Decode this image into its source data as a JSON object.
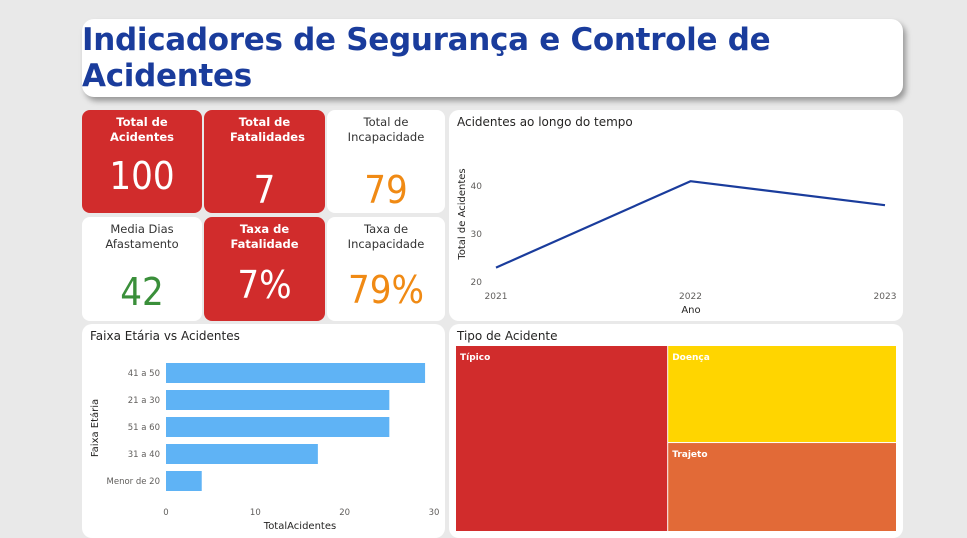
{
  "header": {
    "title": "Indicadores de Segurança e Controle de Acidentes"
  },
  "kpis": {
    "total_acidentes": {
      "label": "Total de Acidentes",
      "value": "100"
    },
    "total_fatalidades": {
      "label": "Total de Fatalidades",
      "value": "7"
    },
    "total_incapacidade": {
      "label": "Total de Incapacidade",
      "value": "79"
    },
    "media_dias": {
      "label": "Media Dias Afastamento",
      "value": "42"
    },
    "taxa_fatalidade": {
      "label": "Taxa de Fatalidade",
      "value": "7%"
    },
    "taxa_incapacidade": {
      "label": "Taxa de Incapacidade",
      "value": "79%"
    }
  },
  "colors": {
    "kpi_red": "#d12c2c",
    "title_blue": "#1a3c9c",
    "orange": "#f08a14",
    "green": "#3a8f3a",
    "line": "#1a3c9c",
    "bar": "#5fb3f5",
    "typical": "#d12c2c",
    "disease": "#ffd500",
    "commute": "#e26a37"
  },
  "chart_data": [
    {
      "type": "line",
      "title": "Acidentes ao longo do tempo",
      "xlabel": "Ano",
      "ylabel": "Total de Acidentes",
      "x": [
        "2021",
        "2022",
        "2023"
      ],
      "series": [
        {
          "values": [
            23,
            41,
            36
          ]
        }
      ],
      "ylim": [
        20,
        45
      ],
      "yticks": [
        20,
        30,
        40
      ],
      "grid": false
    },
    {
      "type": "bar",
      "orientation": "horizontal",
      "title": "Faixa Etária vs Acidentes",
      "xlabel": "TotalAcidentes",
      "ylabel": "Faixa Etária",
      "categories": [
        "41 a 50",
        "21 a 30",
        "51 a 60",
        "31 a 40",
        "Menor de 20"
      ],
      "values": [
        29,
        25,
        25,
        17,
        4
      ],
      "xlim": [
        0,
        30
      ],
      "xticks": [
        0,
        10,
        20,
        30
      ],
      "grid": false
    },
    {
      "type": "treemap",
      "title": "Tipo de Acidente",
      "categories": [
        "Típico",
        "Doença",
        "Trajeto"
      ],
      "values": [
        48,
        27,
        25
      ]
    }
  ]
}
